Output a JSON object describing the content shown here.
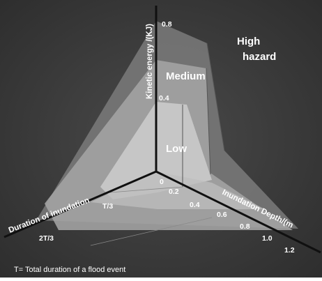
{
  "diagram": {
    "zones": {
      "high": [
        "High",
        "hazard"
      ],
      "medium": "Medium",
      "low": "Low"
    },
    "axes": {
      "kinetic": {
        "label": "Kinetic energy /(KJ)",
        "ticks": [
          "0.8",
          "0.4"
        ]
      },
      "depth": {
        "label": "Inundation Depth/(m",
        "ticks": [
          "0.2",
          "0.4",
          "0.6",
          "0.8",
          "1.0",
          "1.2"
        ]
      },
      "duration": {
        "label": "Duration of inundation",
        "ticks": [
          "T/3",
          "2T/3"
        ]
      },
      "origin": "0"
    },
    "footnote": "T= Total duration of a flood event"
  },
  "colors": {
    "background": "#3a3a3a",
    "high_zone": "#767676",
    "medium_zone": "#a4a4a4",
    "low_zone": "#cacaca",
    "axis": "#101010",
    "text": "#ffffff"
  }
}
